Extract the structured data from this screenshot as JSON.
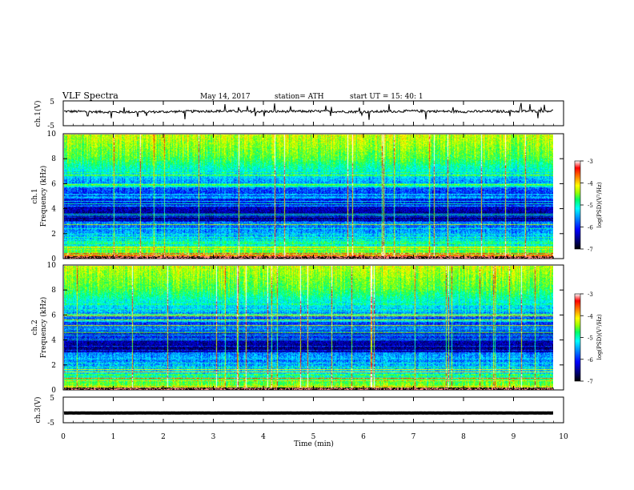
{
  "header": {
    "title": "VLF  Spectra",
    "date": "May 14, 2017",
    "station": "station= ATH",
    "start_ut": "start  UT  =    15: 40: 1"
  },
  "chart_data": [
    {
      "type": "line",
      "panel": "ch1-waveform",
      "ylabel": "ch.1(V)",
      "ylim": [
        -5,
        5
      ],
      "yticks": [
        "5",
        "-5"
      ],
      "xlim": [
        0,
        10
      ],
      "x_range_with_data": [
        0,
        9.8
      ],
      "approx_baseline_v": 0.8,
      "x": [
        0,
        1,
        2,
        3,
        4,
        5,
        6,
        7,
        8,
        9,
        9.8
      ],
      "values": [
        0.8,
        0.5,
        0.6,
        0.9,
        0.7,
        0.8,
        0.6,
        0.9,
        0.7,
        0.8,
        1.0
      ]
    },
    {
      "type": "heatmap",
      "panel": "ch1-spectrogram",
      "ylabel": "ch.1\nFrequency (kHz)",
      "ylabel_lines": [
        "ch.1",
        "Frequency (kHz)"
      ],
      "ylim": [
        0,
        10
      ],
      "yticks": [
        "0",
        "2",
        "4",
        "6",
        "8",
        "10"
      ],
      "xlim": [
        0,
        10
      ],
      "x_range_with_data": [
        0,
        9.8
      ],
      "colorbar": {
        "label": "log(PSD)(V²/Hz)",
        "range": [
          -7,
          -3
        ],
        "ticks": [
          "-3",
          "-4",
          "-5",
          "-6",
          "-7"
        ]
      }
    },
    {
      "type": "heatmap",
      "panel": "ch2-spectrogram",
      "ylabel": "ch.2\nFrequency (kHz)",
      "ylabel_lines": [
        "ch.2",
        "Frequency (kHz)"
      ],
      "ylim": [
        0,
        10
      ],
      "yticks": [
        "0",
        "2",
        "4",
        "6",
        "8",
        "10"
      ],
      "xlim": [
        0,
        10
      ],
      "x_range_with_data": [
        0,
        9.8
      ],
      "colorbar": {
        "label": "log(PSD)(V²/Hz)",
        "range": [
          -7,
          -3
        ],
        "ticks": [
          "-3",
          "-4",
          "-5",
          "-6",
          "-7"
        ]
      }
    },
    {
      "type": "line",
      "panel": "ch3-waveform",
      "ylabel": "ch.3(V)",
      "ylim": [
        -5,
        5
      ],
      "yticks": [
        "5",
        "-5"
      ],
      "xlim": [
        0,
        10
      ],
      "x_range_with_data": [
        0,
        9.8
      ],
      "approx_baseline_v": -1.2,
      "x": [
        0,
        9.8
      ],
      "values": [
        -1.2,
        -1.2
      ]
    }
  ],
  "xaxis": {
    "label": "Time  (min)",
    "ticks": [
      "0",
      "1",
      "2",
      "3",
      "4",
      "5",
      "6",
      "7",
      "8",
      "9",
      "10"
    ]
  },
  "colors": {
    "axis": "#000000",
    "trace": "#000000",
    "colormap": [
      "#000000",
      "#00007a",
      "#0000ff",
      "#0095ff",
      "#00ffff",
      "#00ff66",
      "#9bff00",
      "#ffff00",
      "#ff8000",
      "#ff0000",
      "#ffffff"
    ]
  }
}
